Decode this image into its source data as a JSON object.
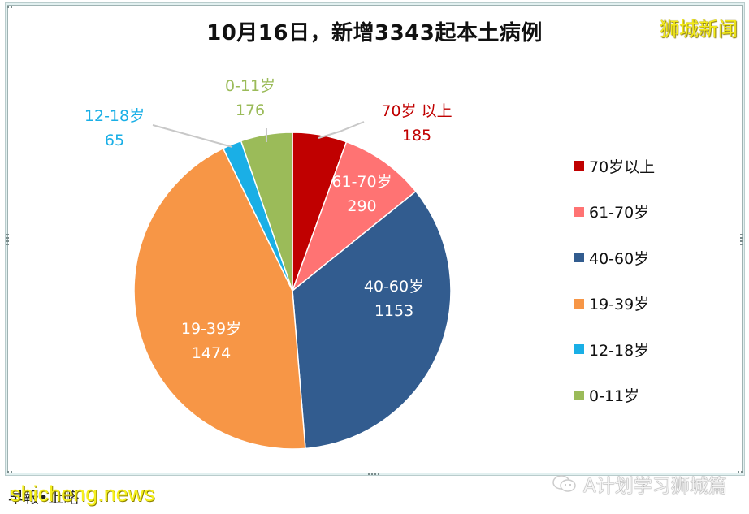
{
  "title": "10月16日，新增3343起本土病例",
  "watermark_top": "狮城新闻",
  "footer": {
    "left_text": "早報•上略",
    "news_watermark": "shicheng.news",
    "right_text": "A计划学习狮城篇",
    "right_icon": "wechat-icon"
  },
  "colors": {
    "70plus": "#C00000",
    "61_70": "#FF7373",
    "40_60": "#325C8F",
    "19_39": "#F79646",
    "12_18": "#1AAFE6",
    "0_11": "#9BBB59"
  },
  "labels": {
    "s0": {
      "name": "70岁 以上",
      "value": "185"
    },
    "s1": {
      "name": "61-70岁",
      "value": "290"
    },
    "s2": {
      "name": "40-60岁",
      "value": "1153"
    },
    "s3": {
      "name": "19-39岁",
      "value": "1474"
    },
    "s4": {
      "name": "12-18岁",
      "value": "65"
    },
    "s5": {
      "name": "0-11岁",
      "value": "176"
    }
  },
  "legend": [
    {
      "label": "70岁以上"
    },
    {
      "label": "61-70岁"
    },
    {
      "label": "40-60岁"
    },
    {
      "label": "19-39岁"
    },
    {
      "label": "12-18岁"
    },
    {
      "label": "0-11岁"
    }
  ],
  "chart_data": {
    "type": "pie",
    "title": "10月16日，新增3343起本土病例",
    "categories": [
      "70岁以上",
      "61-70岁",
      "40-60岁",
      "19-39岁",
      "12-18岁",
      "0-11岁"
    ],
    "values": [
      185,
      290,
      1153,
      1474,
      65,
      176
    ],
    "total": 3343,
    "colors": [
      "#C00000",
      "#FF7373",
      "#325C8F",
      "#F79646",
      "#1AAFE6",
      "#9BBB59"
    ],
    "start_angle": "12 o'clock, clockwise",
    "legend_position": "right",
    "data_labels": "category name and value"
  }
}
